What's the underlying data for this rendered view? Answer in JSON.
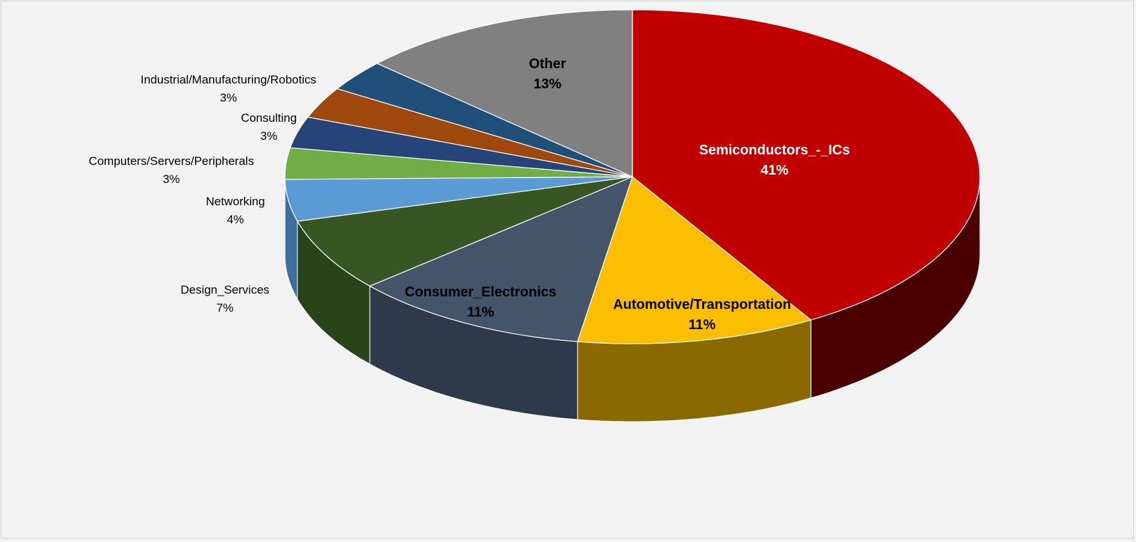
{
  "chart_data": {
    "type": "pie",
    "style": "3d",
    "slices": [
      {
        "label": "Semiconductors_-_ICs",
        "value": 41,
        "display": "41%",
        "color": "#c00000",
        "side_color": "#4a0000",
        "label_position": "inside",
        "label_color": "#ffffff"
      },
      {
        "label": "Automotive/Transportation",
        "value": 11,
        "display": "11%",
        "color": "#fbbd00",
        "side_color": "#8a6a00",
        "label_position": "inside",
        "label_color": "#000000"
      },
      {
        "label": "Consumer_Electronics",
        "value": 11,
        "display": "11%",
        "color": "#44546a",
        "side_color": "#2e3a4a",
        "label_position": "inside",
        "label_color": "#000000"
      },
      {
        "label": "Design_Services",
        "value": 7,
        "display": "7%",
        "color": "#375623",
        "side_color": "#2a4419",
        "label_position": "outside",
        "label_color": "#000000"
      },
      {
        "label": "Networking",
        "value": 4,
        "display": "4%",
        "color": "#5b9bd5",
        "side_color": "#3d6f9e",
        "label_position": "outside",
        "label_color": "#000000"
      },
      {
        "label": "Computers/Servers/Peripherals",
        "value": 3,
        "display": "3%",
        "color": "#70ad47",
        "side_color": "#4e7a31",
        "label_position": "outside",
        "label_color": "#000000"
      },
      {
        "label": "Consulting",
        "value": 3,
        "display": "3%",
        "color": "#264478",
        "side_color": "#1a2f54",
        "label_position": "outside",
        "label_color": "#000000"
      },
      {
        "label": "Industrial/Manufacturing/Robotics",
        "value": 3,
        "display": "3%",
        "color": "#9e480e",
        "side_color": "#6e320a",
        "label_position": "outside",
        "label_color": "#000000"
      },
      {
        "label": "",
        "value": 3,
        "display": "",
        "color": "#1f4e79",
        "side_color": "#153656",
        "label_position": "none",
        "label_color": "#000000"
      },
      {
        "label": "Other",
        "value": 13,
        "display": "13%",
        "color": "#808080",
        "side_color": "#5a5a5a",
        "label_position": "inside",
        "label_color": "#000000"
      }
    ],
    "title": "",
    "legend": "none",
    "start": "top",
    "direction": "clockwise"
  }
}
